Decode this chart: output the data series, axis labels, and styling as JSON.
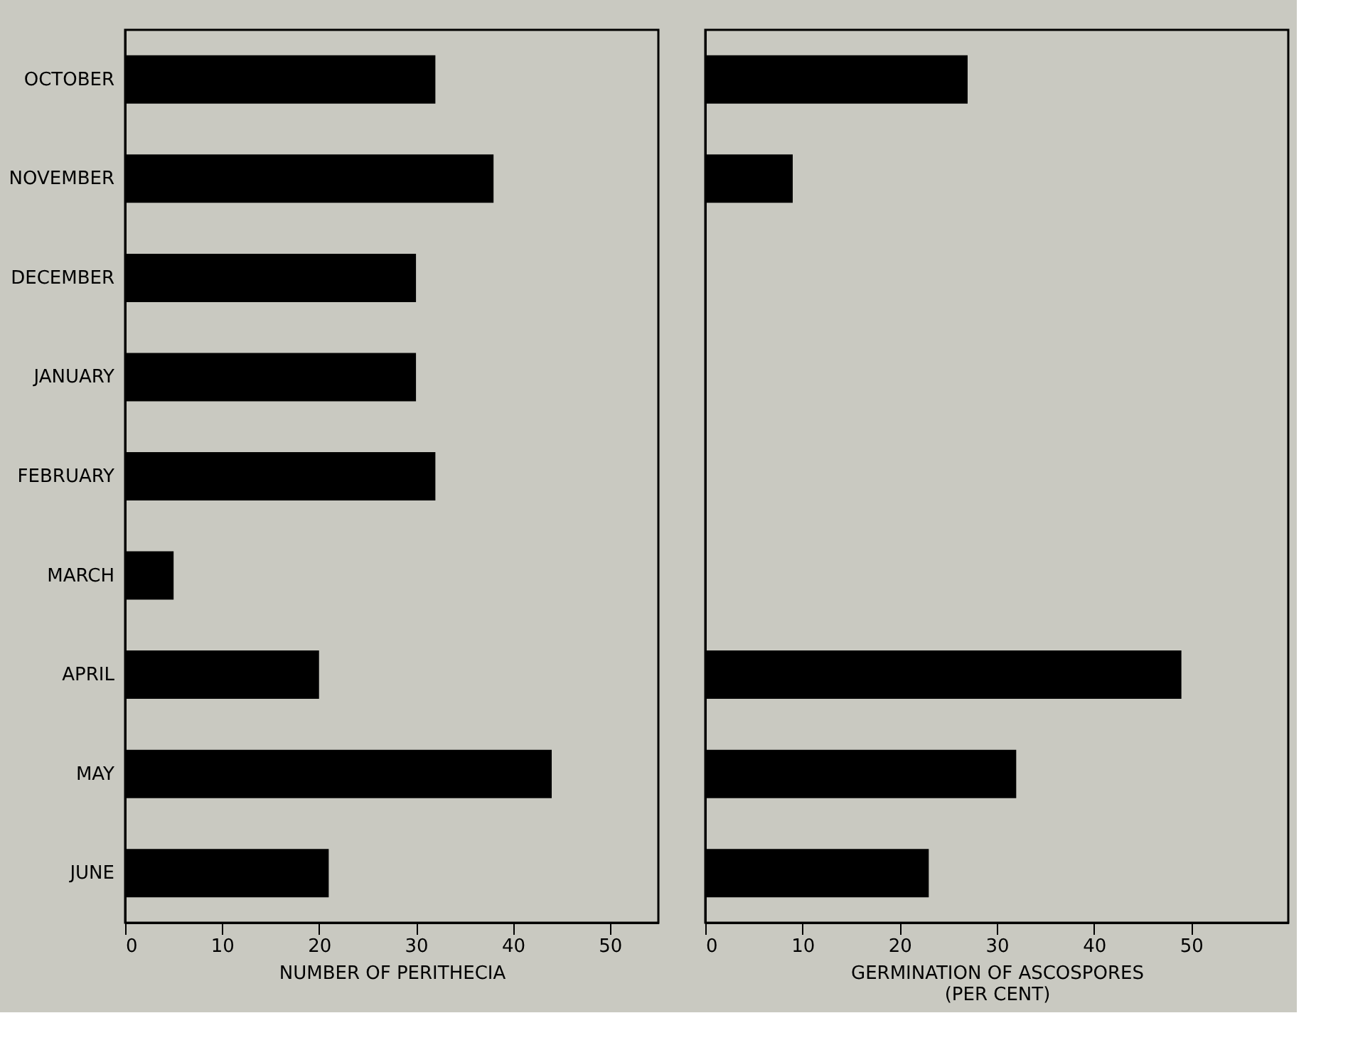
{
  "chart_data": [
    {
      "type": "bar",
      "orientation": "horizontal",
      "xlabel": "NUMBER OF PERITHECIA",
      "categories": [
        "OCTOBER",
        "NOVEMBER",
        "DECEMBER",
        "JANUARY",
        "FEBRUARY",
        "MARCH",
        "APRIL",
        "MAY",
        "JUNE"
      ],
      "values": [
        32,
        38,
        30,
        30,
        32,
        5,
        20,
        44,
        21
      ],
      "color": "#000000",
      "xlim": [
        0,
        55
      ],
      "xticks": [
        0,
        10,
        20,
        30,
        40,
        50
      ],
      "grid": false
    },
    {
      "type": "bar",
      "orientation": "horizontal",
      "xlabel": "GERMINATION OF ASCOSPORES\n(PER CENT)",
      "categories": [
        null,
        null,
        null,
        null,
        null,
        null,
        null,
        null,
        null
      ],
      "values": [
        27,
        9,
        null,
        null,
        null,
        null,
        49,
        32,
        23
      ],
      "color": "#000000",
      "xlim": [
        0,
        60
      ],
      "xticks": [
        0,
        10,
        20,
        30,
        40,
        50
      ],
      "grid": false,
      "tick_labels": "x"
    }
  ]
}
